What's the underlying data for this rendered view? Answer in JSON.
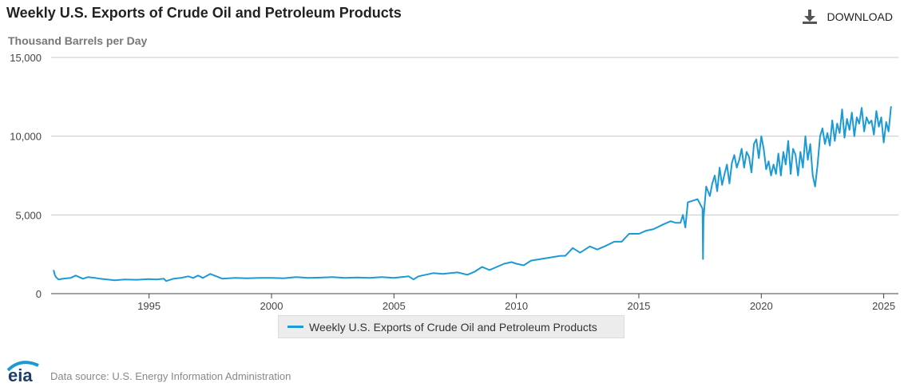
{
  "header": {
    "title": "Weekly U.S. Exports of Crude Oil and Petroleum Products",
    "units": "Thousand Barrels per Day",
    "download_label": "DOWNLOAD"
  },
  "legend": {
    "label": "Weekly U.S. Exports of Crude Oil and Petroleum Products"
  },
  "footer": {
    "source": "Data source: U.S. Energy Information Administration",
    "logo_text": "eia"
  },
  "colors": {
    "series": "#1c9ad6",
    "grid": "#c8c8c8",
    "axis": "#444444",
    "logo": "#1c9ad6"
  },
  "icons": {
    "download": "download-icon",
    "logo": "eia-logo"
  },
  "chart_data": {
    "type": "line",
    "title": "Weekly U.S. Exports of Crude Oil and Petroleum Products",
    "ylabel": "Thousand Barrels per Day",
    "xlabel": "",
    "xlim": [
      1991.0,
      2025.6
    ],
    "ylim": [
      0,
      15000
    ],
    "yticks": [
      0,
      5000,
      10000,
      15000
    ],
    "ytick_labels": [
      "0",
      "5,000",
      "10,000",
      "15,000"
    ],
    "xticks": [
      1995,
      2000,
      2005,
      2010,
      2015,
      2020,
      2025
    ],
    "xtick_labels": [
      "1995",
      "2000",
      "2005",
      "2010",
      "2015",
      "2020",
      "2025"
    ],
    "grid": true,
    "legend_position": "bottom-center",
    "series": [
      {
        "name": "Weekly U.S. Exports of Crude Oil and Petroleum Products",
        "approximate": true,
        "x": [
          1991.1,
          1991.15,
          1991.2,
          1991.3,
          1991.5,
          1991.8,
          1992.0,
          1992.3,
          1992.5,
          1992.8,
          1993.0,
          1993.3,
          1993.6,
          1994.0,
          1994.5,
          1995.0,
          1995.3,
          1995.6,
          1995.7,
          1996.0,
          1996.3,
          1996.6,
          1996.8,
          1997.0,
          1997.2,
          1997.5,
          1998.0,
          1998.5,
          1999.0,
          1999.5,
          2000.0,
          2000.5,
          2001.0,
          2001.5,
          2002.0,
          2002.5,
          2003.0,
          2003.5,
          2004.0,
          2004.5,
          2005.0,
          2005.3,
          2005.6,
          2005.8,
          2006.0,
          2006.3,
          2006.6,
          2007.0,
          2007.3,
          2007.6,
          2008.0,
          2008.3,
          2008.6,
          2008.9,
          2009.2,
          2009.5,
          2009.8,
          2010.0,
          2010.3,
          2010.6,
          2011.0,
          2011.4,
          2011.8,
          2012.0,
          2012.3,
          2012.6,
          2013.0,
          2013.3,
          2013.6,
          2014.0,
          2014.3,
          2014.6,
          2015.0,
          2015.3,
          2015.6,
          2016.0,
          2016.3,
          2016.5,
          2016.7,
          2016.8,
          2016.9,
          2017.0,
          2017.2,
          2017.4,
          2017.6,
          2017.62,
          2017.64,
          2017.68,
          2017.75,
          2017.9,
          2018.0,
          2018.1,
          2018.2,
          2018.3,
          2018.4,
          2018.5,
          2018.6,
          2018.7,
          2018.8,
          2018.9,
          2019.0,
          2019.1,
          2019.2,
          2019.3,
          2019.4,
          2019.5,
          2019.6,
          2019.7,
          2019.8,
          2019.9,
          2020.0,
          2020.1,
          2020.2,
          2020.3,
          2020.4,
          2020.5,
          2020.6,
          2020.7,
          2020.8,
          2020.9,
          2021.0,
          2021.1,
          2021.2,
          2021.3,
          2021.4,
          2021.5,
          2021.6,
          2021.7,
          2021.8,
          2021.9,
          2022.0,
          2022.1,
          2022.2,
          2022.3,
          2022.4,
          2022.5,
          2022.6,
          2022.7,
          2022.8,
          2022.9,
          2023.0,
          2023.1,
          2023.2,
          2023.3,
          2023.4,
          2023.5,
          2023.6,
          2023.7,
          2023.8,
          2023.9,
          2024.0,
          2024.1,
          2024.2,
          2024.3,
          2024.4,
          2024.5,
          2024.6,
          2024.7,
          2024.8,
          2024.9,
          2025.0,
          2025.1,
          2025.2,
          2025.3
        ],
        "y": [
          1500,
          1200,
          1050,
          900,
          950,
          1000,
          1150,
          950,
          1050,
          1000,
          950,
          900,
          850,
          900,
          880,
          920,
          900,
          950,
          800,
          950,
          1000,
          1100,
          1000,
          1150,
          1000,
          1250,
          950,
          1000,
          980,
          1000,
          1000,
          980,
          1050,
          1000,
          1020,
          1050,
          1000,
          1030,
          1000,
          1050,
          1000,
          1050,
          1100,
          900,
          1100,
          1200,
          1300,
          1250,
          1300,
          1350,
          1200,
          1400,
          1700,
          1500,
          1700,
          1900,
          2000,
          1900,
          1800,
          2100,
          2200,
          2300,
          2400,
          2400,
          2900,
          2600,
          3000,
          2800,
          3000,
          3300,
          3300,
          3800,
          3800,
          4000,
          4100,
          4400,
          4600,
          4500,
          4500,
          5000,
          4200,
          5800,
          5900,
          6000,
          5400,
          2200,
          4700,
          5500,
          6800,
          6200,
          7000,
          7500,
          6500,
          8000,
          6900,
          7600,
          8200,
          7000,
          8300,
          8800,
          8000,
          8500,
          9200,
          8000,
          9000,
          8700,
          7700,
          9500,
          9800,
          8600,
          10000,
          9200,
          7900,
          8400,
          7500,
          8200,
          7600,
          8900,
          7500,
          9000,
          8200,
          9700,
          7600,
          9200,
          8800,
          7500,
          9000,
          8000,
          10000,
          8500,
          9500,
          7500,
          6800,
          8200,
          10000,
          10500,
          9500,
          10200,
          9400,
          11000,
          9700,
          10800,
          10200,
          11700,
          9900,
          11100,
          10400,
          11500,
          10000,
          11200,
          10800,
          11800,
          10300,
          11200,
          10800,
          11000,
          10100,
          11600,
          10600,
          11200,
          9600,
          10900,
          10300,
          11900
        ]
      }
    ]
  }
}
